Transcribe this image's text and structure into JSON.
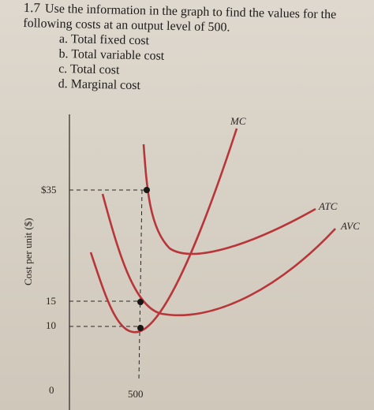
{
  "question": {
    "number": "1.7",
    "text": "Use the information in the graph to find the values for the following costs at an output level of 500.",
    "items": [
      "a. Total fixed cost",
      "b. Total variable cost",
      "c. Total cost",
      "d. Marginal cost"
    ]
  },
  "graph": {
    "curves": [
      "MC",
      "ATC",
      "AVC"
    ],
    "y_ticks": [
      "$35",
      "15",
      "10"
    ],
    "origin": "0",
    "x_ticks": [
      "500"
    ],
    "y_label": "Cost per unit ($)"
  }
}
